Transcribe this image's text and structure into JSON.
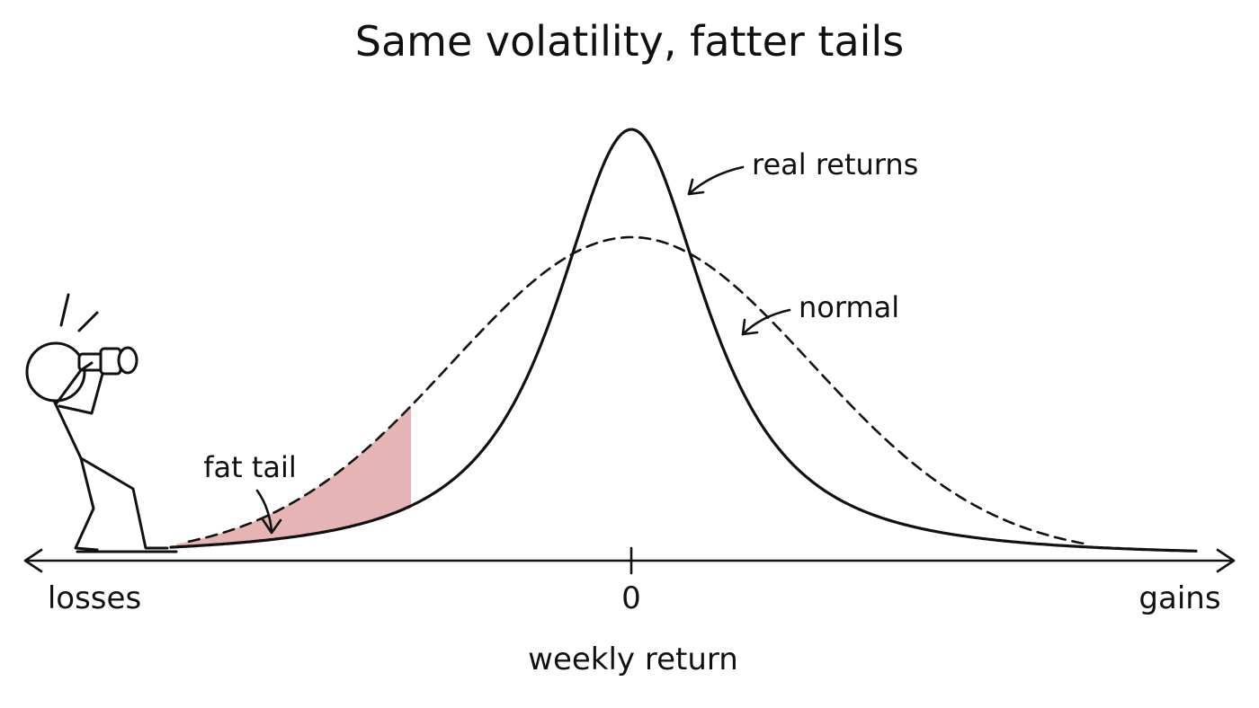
{
  "title": "Same volatility, fatter tails",
  "x_axis": {
    "label": "weekly return",
    "left_end_label": "losses",
    "right_end_label": "gains",
    "center_tick_label": "0"
  },
  "annotations": {
    "real_returns": "real returns",
    "normal": "normal",
    "fat_tail": "fat tail"
  },
  "colors": {
    "ink": "#111111",
    "fat_tail_fill": "#e6b4b4",
    "background": "#ffffff"
  },
  "curves": [
    {
      "name": "real returns",
      "style": "solid"
    },
    {
      "name": "normal",
      "style": "dashed"
    }
  ],
  "figure": {
    "icon": "stick-figure-with-binoculars"
  }
}
